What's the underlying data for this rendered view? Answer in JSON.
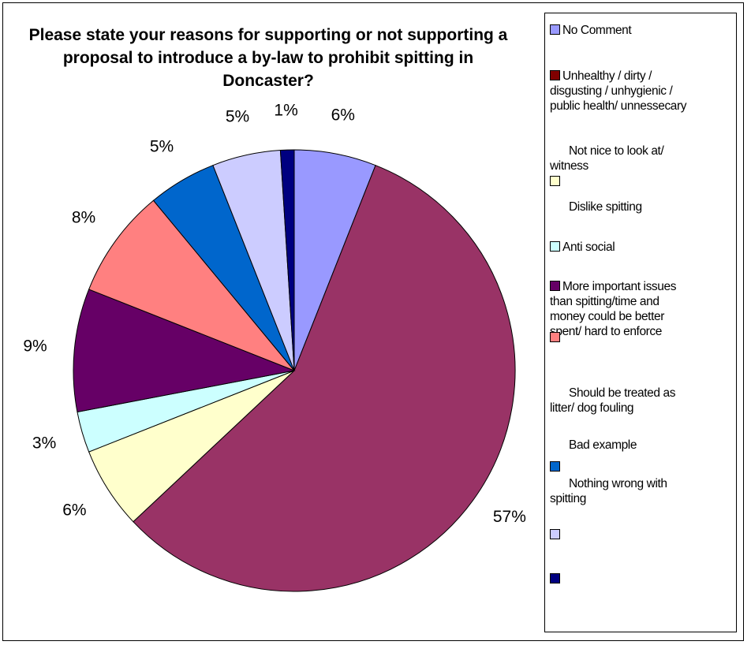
{
  "chart_data": {
    "type": "pie",
    "title": "Please state your reasons for supporting or not supporting a proposal to introduce a by-law to prohibit spitting in Doncaster?",
    "slices": [
      {
        "label": "No Comment",
        "value": 6,
        "value_label": "6%",
        "color": "#9999FF"
      },
      {
        "label": "Unhealthy / dirty / disgusting / unhygienic / public health/ unnessecary",
        "value": 57,
        "value_label": "57%",
        "color": "#993366"
      },
      {
        "label": "Not nice to look at/ witness",
        "value": 6,
        "value_label": "6%",
        "color": "#FFFFCC"
      },
      {
        "label": "Dislike spitting",
        "value": 3,
        "value_label": "3%",
        "color": "#CCFFFF"
      },
      {
        "label": "Anti social",
        "value": 9,
        "value_label": "9%",
        "color": "#660066"
      },
      {
        "label": "More important issues than spitting/time and money could be better spent/ hard to enforce",
        "value": 8,
        "value_label": "8%",
        "color": "#FF8080"
      },
      {
        "label": "Should be treated as litter/ dog fouling",
        "value": 5,
        "value_label": "5%",
        "color": "#0066CC"
      },
      {
        "label": "Bad example",
        "value": 5,
        "value_label": "5%",
        "color": "#CCCCFF"
      },
      {
        "label": "Nothing wrong with spitting",
        "value": 1,
        "value_label": "1%",
        "color": "#000080"
      }
    ],
    "legend_position": "right"
  },
  "legend": {
    "no_comment": "No Comment",
    "unhealthy_l1": "Unhealthy / dirty /",
    "unhealthy_l2": "disgusting / unhygienic /",
    "unhealthy_l3": "public health/ unnessecary",
    "notnice_l1": "Not nice to look at/",
    "notnice_l2": "witness",
    "dislike": "Dislike spitting",
    "antisocial": "Anti social",
    "important_l1": "More important issues",
    "important_l2": "than spitting/time and",
    "important_l3": "money could be better",
    "important_l4": "spent/ hard to enforce",
    "litter_l1": "Should be treated as",
    "litter_l2": "litter/ dog fouling",
    "bad": "Bad example",
    "nothing_l1": "Nothing wrong with",
    "nothing_l2": "spitting"
  }
}
